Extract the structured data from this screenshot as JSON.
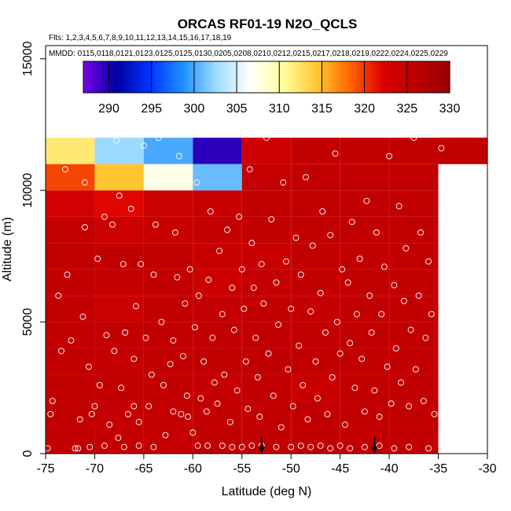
{
  "chart_data": {
    "type": "heatmap",
    "title": "ORCAS RF01-19 N2O_QCLS",
    "flights_line": "Flts: 1,2,3,4,5,6,7,8,9,10,11,12,13,14,15,16,17,18,19",
    "mmdd_line": "MMDD: 0115,0118,0121,0123,0125,0125,0130,0205,0208,0210,0212,0215,0217,0218,0219,0222,0224,0225,0229",
    "xlabel": "Latitude (deg N)",
    "ylabel": "Altitude (m)",
    "xlim": [
      -75,
      -30
    ],
    "ylim": [
      0,
      15500
    ],
    "x_ticks": [
      -75,
      -70,
      -65,
      -60,
      -55,
      -50,
      -45,
      -40,
      -35,
      -30
    ],
    "x_tick_labels": [
      "-75",
      "-70",
      "-65",
      "-60",
      "-55",
      "-50",
      "-45",
      "-40",
      "-35",
      "-30"
    ],
    "y_ticks": [
      0,
      5000,
      10000,
      15000
    ],
    "y_tick_labels": [
      "0",
      "5000",
      "10000",
      "15000"
    ],
    "colorbar": {
      "min": 287,
      "max": 330,
      "ticks": [
        290,
        295,
        300,
        305,
        310,
        315,
        320,
        325,
        330
      ],
      "tick_labels": [
        "290",
        "295",
        "300",
        "305",
        "310",
        "315",
        "320",
        "325",
        "330"
      ],
      "colors": [
        "#7a00e8",
        "#0000a0",
        "#0033ff",
        "#1e90ff",
        "#9fdcff",
        "#ffffff",
        "#ffffa0",
        "#ffc830",
        "#ff6600",
        "#dd0000",
        "#bb0000",
        "#990000"
      ]
    },
    "cell_width_deg": 5,
    "cell_height_m": 1000,
    "columns": [
      {
        "x0": -75,
        "values": [
          325.3,
          325.4,
          325.2,
          325.3,
          325.2,
          325.4,
          325.3,
          325.4,
          325.0,
          323.5,
          319.5,
          312.0,
          null,
          null,
          null
        ]
      },
      {
        "x0": -70,
        "values": [
          325.2,
          325.1,
          325.3,
          325.0,
          325.2,
          324.2,
          325.1,
          325.2,
          324.0,
          322.0,
          314.5,
          302.5,
          null,
          null,
          null
        ]
      },
      {
        "x0": -65,
        "values": [
          325.1,
          325.1,
          325.3,
          325.3,
          325.2,
          325.3,
          325.3,
          325.4,
          324.5,
          324.2,
          307.5,
          300.0,
          null,
          null,
          null
        ]
      },
      {
        "x0": -60,
        "values": [
          325.3,
          325.2,
          325.1,
          325.4,
          325.2,
          325.0,
          324.3,
          324.4,
          325.0,
          324.5,
          301.0,
          289.5,
          null,
          null,
          null
        ]
      },
      {
        "x0": -55,
        "values": [
          325.3,
          325.2,
          325.2,
          325.4,
          325.3,
          325.2,
          325.0,
          324.5,
          325.4,
          325.2,
          325.1,
          323.8,
          null,
          null,
          null
        ]
      },
      {
        "x0": -50,
        "values": [
          325.2,
          325.3,
          324.5,
          325.3,
          325.2,
          325.1,
          325.2,
          325.2,
          325.3,
          325.3,
          325.2,
          325.2,
          null,
          null,
          null
        ]
      },
      {
        "x0": -45,
        "values": [
          325.2,
          325.2,
          325.3,
          325.3,
          325.2,
          325.2,
          325.2,
          325.3,
          325.2,
          325.2,
          325.2,
          325.2,
          null,
          null,
          null
        ]
      },
      {
        "x0": -40,
        "values": [
          325.2,
          325.2,
          325.2,
          325.2,
          325.2,
          325.2,
          325.2,
          325.2,
          325.2,
          325.2,
          325.2,
          325.2,
          null,
          null,
          null
        ]
      },
      {
        "x0": -35,
        "values": [
          null,
          null,
          null,
          null,
          null,
          null,
          null,
          null,
          null,
          null,
          null,
          325.2,
          null,
          null,
          null
        ]
      }
    ],
    "top_band": {
      "y0": 11000,
      "y1": 12000,
      "x0": -35,
      "x1": -30,
      "value": 325.2
    },
    "arrow_latitudes": [
      -53,
      -41.5
    ],
    "observation_points": [
      [
        -74.8,
        200
      ],
      [
        -74.5,
        1500
      ],
      [
        -74.3,
        2000
      ],
      [
        -73.7,
        6000
      ],
      [
        -73.4,
        3900
      ],
      [
        -72.8,
        6800
      ],
      [
        -72.4,
        4300
      ],
      [
        -71.7,
        200
      ],
      [
        -71.5,
        1300
      ],
      [
        -71.2,
        5200
      ],
      [
        -71.0,
        8600
      ],
      [
        -70.6,
        3300
      ],
      [
        -70.3,
        1500
      ],
      [
        -70.0,
        1800
      ],
      [
        -69.7,
        7400
      ],
      [
        -69.5,
        2600
      ],
      [
        -69.0,
        9000
      ],
      [
        -68.8,
        4500
      ],
      [
        -68.5,
        1100
      ],
      [
        -68.2,
        8700
      ],
      [
        -68.0,
        3900
      ],
      [
        -67.8,
        11900
      ],
      [
        -67.6,
        600
      ],
      [
        -67.3,
        2500
      ],
      [
        -67.1,
        7200
      ],
      [
        -66.9,
        4600
      ],
      [
        -66.6,
        1500
      ],
      [
        -66.3,
        9300
      ],
      [
        -66.0,
        3600
      ],
      [
        -65.8,
        5600
      ],
      [
        -65.5,
        1200
      ],
      [
        -65.3,
        7200
      ],
      [
        -65.0,
        11700
      ],
      [
        -64.8,
        4400
      ],
      [
        -64.5,
        1800
      ],
      [
        -64.2,
        3000
      ],
      [
        -64.0,
        6800
      ],
      [
        -63.8,
        8700
      ],
      [
        -63.5,
        12000
      ],
      [
        -63.2,
        5000
      ],
      [
        -63.0,
        2600
      ],
      [
        -62.8,
        700
      ],
      [
        -62.5,
        10800
      ],
      [
        -62.3,
        3400
      ],
      [
        -62.0,
        4300
      ],
      [
        -61.8,
        8400
      ],
      [
        -61.6,
        6700
      ],
      [
        -61.4,
        11300
      ],
      [
        -61.2,
        1500
      ],
      [
        -61.0,
        3700
      ],
      [
        -60.8,
        5700
      ],
      [
        -60.6,
        2200
      ],
      [
        -60.3,
        7000
      ],
      [
        -60.0,
        800
      ],
      [
        -59.8,
        4800
      ],
      [
        -59.6,
        10300
      ],
      [
        -59.4,
        6000
      ],
      [
        -59.2,
        2100
      ],
      [
        -58.9,
        3500
      ],
      [
        -58.6,
        1600
      ],
      [
        -58.4,
        6600
      ],
      [
        -58.2,
        9200
      ],
      [
        -58.0,
        4400
      ],
      [
        -57.8,
        2700
      ],
      [
        -57.5,
        1900
      ],
      [
        -57.3,
        7700
      ],
      [
        -57.0,
        5300
      ],
      [
        -56.8,
        3000
      ],
      [
        -56.5,
        8500
      ],
      [
        -56.2,
        1200
      ],
      [
        -56.0,
        6300
      ],
      [
        -55.8,
        4700
      ],
      [
        -55.5,
        2400
      ],
      [
        -55.3,
        9000
      ],
      [
        -55.0,
        7000
      ],
      [
        -54.8,
        5500
      ],
      [
        -54.6,
        3500
      ],
      [
        -54.4,
        1700
      ],
      [
        -54.2,
        10800
      ],
      [
        -54.0,
        8000
      ],
      [
        -53.8,
        6300
      ],
      [
        -53.6,
        4400
      ],
      [
        -53.4,
        2900
      ],
      [
        -53.2,
        1400
      ],
      [
        -53.0,
        7200
      ],
      [
        -52.8,
        5700
      ],
      [
        -52.5,
        12000
      ],
      [
        -52.3,
        3800
      ],
      [
        -52.0,
        8900
      ],
      [
        -51.8,
        2200
      ],
      [
        -51.5,
        6500
      ],
      [
        -51.3,
        4900
      ],
      [
        -51.0,
        1000
      ],
      [
        -50.8,
        10300
      ],
      [
        -50.5,
        7300
      ],
      [
        -50.3,
        3200
      ],
      [
        -50.0,
        5500
      ],
      [
        -49.8,
        1800
      ],
      [
        -49.5,
        8200
      ],
      [
        -49.2,
        4100
      ],
      [
        -49.0,
        6800
      ],
      [
        -48.8,
        2600
      ],
      [
        -48.5,
        10500
      ],
      [
        -48.3,
        1300
      ],
      [
        -48.0,
        5400
      ],
      [
        -47.8,
        7900
      ],
      [
        -47.5,
        3500
      ],
      [
        -47.3,
        2100
      ],
      [
        -47.0,
        6100
      ],
      [
        -46.8,
        9200
      ],
      [
        -46.5,
        4600
      ],
      [
        -46.3,
        1500
      ],
      [
        -46.0,
        8300
      ],
      [
        -45.8,
        2900
      ],
      [
        -45.5,
        11400
      ],
      [
        -45.3,
        5000
      ],
      [
        -45.0,
        3800
      ],
      [
        -44.8,
        7000
      ],
      [
        -44.5,
        1100
      ],
      [
        -44.2,
        6500
      ],
      [
        -44.0,
        4200
      ],
      [
        -43.8,
        8800
      ],
      [
        -43.5,
        2500
      ],
      [
        -43.3,
        5300
      ],
      [
        -43.0,
        7400
      ],
      [
        -42.8,
        3600
      ],
      [
        -42.5,
        1600
      ],
      [
        -42.3,
        9600
      ],
      [
        -42.0,
        6000
      ],
      [
        -41.8,
        4600
      ],
      [
        -41.5,
        2400
      ],
      [
        -41.3,
        8400
      ],
      [
        -41.0,
        1400
      ],
      [
        -40.8,
        5300
      ],
      [
        -40.5,
        7100
      ],
      [
        -40.2,
        3300
      ],
      [
        -40.0,
        11300
      ],
      [
        -39.8,
        1900
      ],
      [
        -39.5,
        6400
      ],
      [
        -39.3,
        4000
      ],
      [
        -39.0,
        9400
      ],
      [
        -38.8,
        2700
      ],
      [
        -38.5,
        5800
      ],
      [
        -38.3,
        7800
      ],
      [
        -38.0,
        1800
      ],
      [
        -37.8,
        4700
      ],
      [
        -37.5,
        12000
      ],
      [
        -37.3,
        3200
      ],
      [
        -37.0,
        6000
      ],
      [
        -36.8,
        8400
      ],
      [
        -36.5,
        2000
      ],
      [
        -36.3,
        4400
      ],
      [
        -36.0,
        7300
      ],
      [
        -35.7,
        5300
      ],
      [
        -35.4,
        1500
      ],
      [
        -34.7,
        11600
      ],
      [
        -59.5,
        300
      ],
      [
        -58.5,
        300
      ],
      [
        -57.0,
        300
      ],
      [
        -56.0,
        250
      ],
      [
        -55.0,
        250
      ],
      [
        -54.0,
        300
      ],
      [
        -53.0,
        300
      ],
      [
        -51.5,
        250
      ],
      [
        -50.0,
        250
      ],
      [
        -49.0,
        300
      ],
      [
        -48.0,
        250
      ],
      [
        -47.0,
        300
      ],
      [
        -46.0,
        200
      ],
      [
        -45.0,
        300
      ],
      [
        -44.0,
        200
      ],
      [
        -42.5,
        250
      ],
      [
        -41.0,
        300
      ],
      [
        -39.5,
        200
      ],
      [
        -38.0,
        250
      ],
      [
        -36.0,
        200
      ],
      [
        -64.0,
        250
      ],
      [
        -65.5,
        300
      ],
      [
        -67.0,
        250
      ],
      [
        -69.0,
        300
      ],
      [
        -70.5,
        250
      ],
      [
        -72.0,
        200
      ],
      [
        -66.0,
        1800
      ],
      [
        -62.0,
        1600
      ],
      [
        -60.5,
        1400
      ],
      [
        -67.5,
        9800
      ],
      [
        -71.0,
        10300
      ],
      [
        -73.0,
        10800
      ]
    ]
  }
}
